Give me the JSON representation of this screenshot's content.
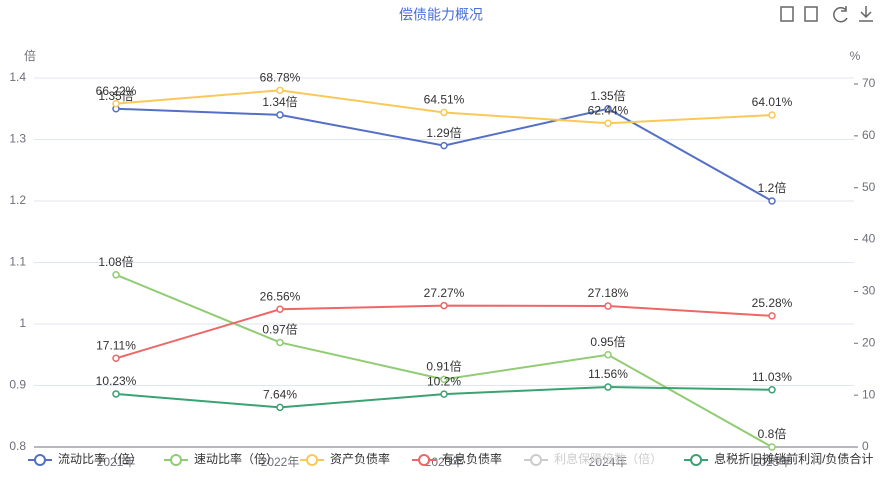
{
  "chart_data": {
    "type": "line",
    "title": "偿债能力概况",
    "y_axis_label": "倍",
    "y2_axis_label": "%",
    "categories": [
      "2021年",
      "2022年",
      "2023年",
      "2024年",
      "2025年"
    ],
    "ylim": [
      0.8,
      1.4
    ],
    "yticks": [
      0.8,
      0.9,
      1,
      1.1,
      1.2,
      1.3,
      1.4
    ],
    "y2lim": [
      0,
      70
    ],
    "y2ticks": [
      0,
      10,
      20,
      30,
      40,
      50,
      60,
      70
    ],
    "grid": true,
    "legend": "bottom",
    "series": [
      {
        "name": "流动比率（倍）",
        "color": "#5470c6",
        "values": [
          1.35,
          1.34,
          1.29,
          1.35,
          1.2
        ],
        "value_labels": [
          "1.35倍",
          "1.34倍",
          "1.29倍",
          "1.35倍",
          "1.2倍"
        ]
      },
      {
        "name": "速动比率（倍）",
        "color": "#91cc75",
        "values": [
          1.08,
          0.97,
          0.91,
          0.95,
          0.8
        ],
        "value_labels": [
          "1.08倍",
          "0.97倍",
          "0.91倍",
          "0.95倍",
          "0.8倍"
        ]
      },
      {
        "name": "资产负债率",
        "color": "#fac858",
        "axis": "y2",
        "values": [
          66.22,
          68.78,
          64.51,
          62.44,
          64.01
        ],
        "value_labels": [
          "66.22%",
          "68.78%",
          "64.51%",
          "62.44%",
          "64.01%"
        ]
      },
      {
        "name": "有息负债率",
        "color": "#ee6666",
        "axis": "y2",
        "values": [
          17.11,
          26.56,
          27.27,
          27.18,
          25.28
        ],
        "value_labels": [
          "17.11%",
          "26.56%",
          "27.27%",
          "27.18%",
          "25.28%"
        ]
      },
      {
        "name": "利息保障倍数（倍）",
        "color": "#cccccc",
        "hidden": true,
        "values": [
          null,
          null,
          null,
          null,
          null
        ]
      },
      {
        "name": "息税折旧摊销前利润/负债合计",
        "color": "#3ba272",
        "axis": "y2",
        "values": [
          10.23,
          7.64,
          10.2,
          11.56,
          11.03
        ],
        "value_labels": [
          "10.23%",
          "7.64%",
          "10.2%",
          "11.56%",
          "11.03%"
        ]
      }
    ]
  }
}
